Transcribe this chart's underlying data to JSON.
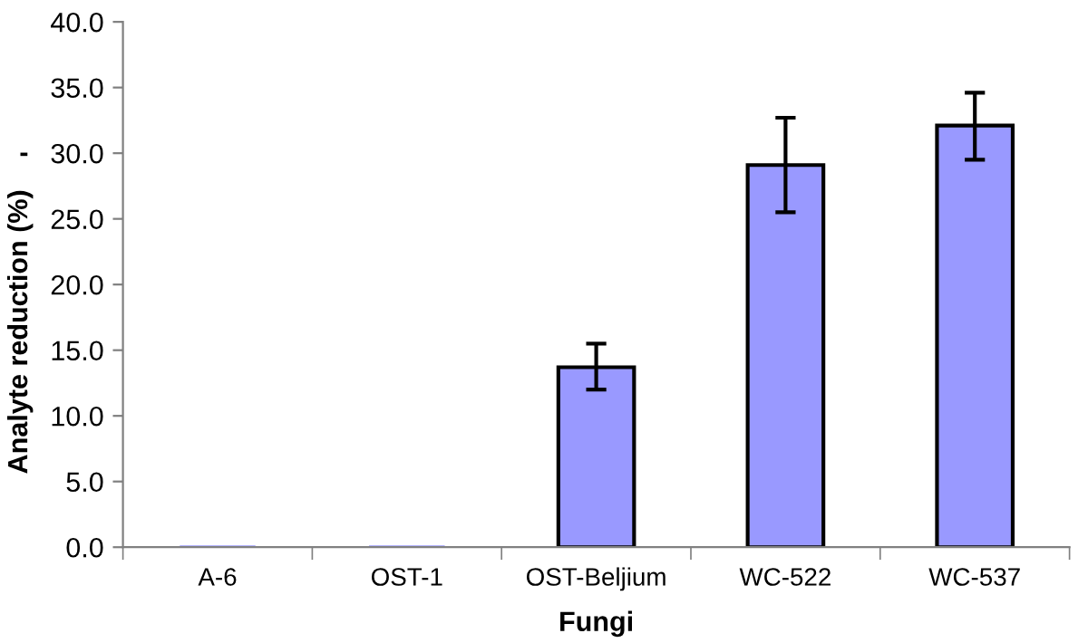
{
  "chart_data": {
    "type": "bar",
    "xlabel": "Fungi",
    "ylabel": "Analyte reduction (%)",
    "categories": [
      "A-6",
      "OST-1",
      "OST-Beljium",
      "WC-522",
      "WC-537"
    ],
    "values": [
      0,
      0,
      13.7,
      29.1,
      32.1
    ],
    "errors": [
      null,
      null,
      [
        12.0,
        15.5
      ],
      [
        25.5,
        32.7
      ],
      [
        29.5,
        34.6
      ]
    ],
    "color": "#9999ff",
    "ylim": [
      0,
      40
    ],
    "yticks": [
      {
        "value": 0,
        "label": "0.0"
      },
      {
        "value": 5,
        "label": "5.0"
      },
      {
        "value": 10,
        "label": "10.0"
      },
      {
        "value": 15,
        "label": "15.0"
      },
      {
        "value": 20,
        "label": "20.0"
      },
      {
        "value": 25,
        "label": "25.0"
      },
      {
        "value": 30,
        "label": "30.0"
      },
      {
        "value": 35,
        "label": "35.0"
      },
      {
        "value": 40,
        "label": "40.0"
      }
    ],
    "annotations": [
      "-"
    ]
  }
}
